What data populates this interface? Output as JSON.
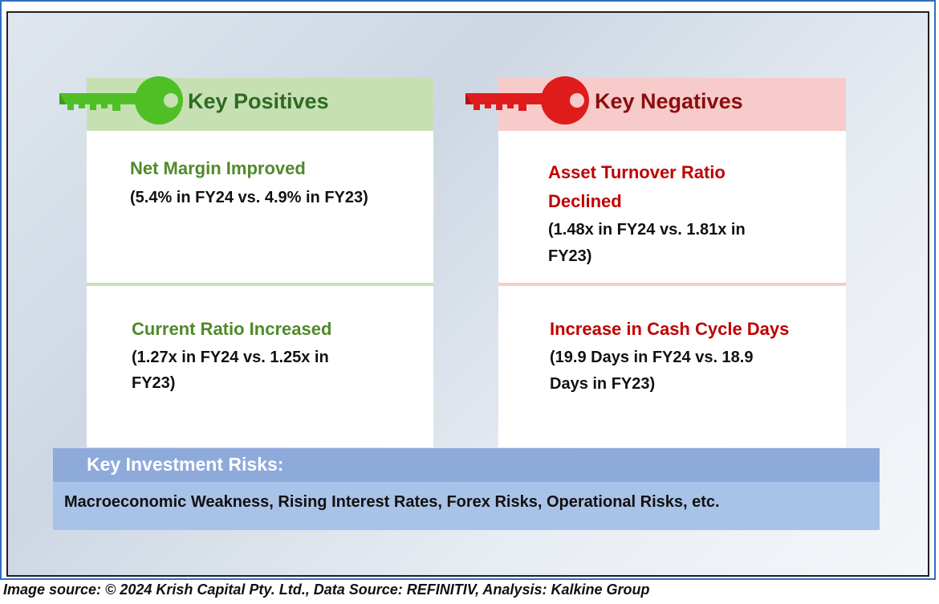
{
  "positives": {
    "title": "Key Positives",
    "color": "#2e6b1f",
    "items": [
      {
        "title": "Net Margin Improved",
        "detail": "(5.4% in FY24 vs. 4.9% in FY23)"
      },
      {
        "title": "Current Ratio Increased",
        "detail_lines": [
          "(1.27x in FY24 vs. 1.25x in",
          "FY23)"
        ]
      }
    ]
  },
  "negatives": {
    "title": "Key Negatives",
    "color": "#c00000",
    "items": [
      {
        "title_lines": [
          "Asset Turnover Ratio",
          "Declined"
        ],
        "detail_lines": [
          "(1.48x in FY24 vs. 1.81x in",
          "FY23)"
        ]
      },
      {
        "title": "Increase in Cash Cycle Days",
        "detail_lines": [
          "(19.9 Days in FY24 vs. 18.9",
          "Days in FY23)"
        ]
      }
    ]
  },
  "risks": {
    "title": "Key Investment Risks:",
    "text": "Macroeconomic Weakness, Rising Interest Rates, Forex Risks, Operational Risks, etc."
  },
  "caption": "Image source: © 2024 Krish Capital Pty. Ltd., Data Source: REFINITIV, Analysis: Kalkine Group",
  "icons": {
    "positives": "green-key-icon",
    "negatives": "red-key-icon"
  }
}
